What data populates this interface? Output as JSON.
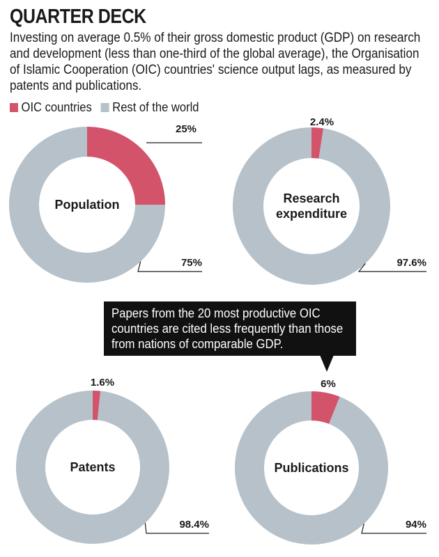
{
  "header": {
    "title": "QUARTER DECK",
    "subtitle": "Investing on average 0.5% of their gross domestic product (GDP) on research and development (less than one-third of the global average), the Organisation of Islamic Cooperation (OIC) countries' science output lags, as measured by patents and publications."
  },
  "legend": {
    "oic_label": "OIC countries",
    "rest_label": "Rest of the world"
  },
  "colors": {
    "oic": "#d2536a",
    "rest": "#b6c1c9"
  },
  "callout": {
    "text": "Papers from the 20 most productive OIC countries are cited less frequently than those from nations of comparable GDP."
  },
  "chart_data": [
    {
      "type": "pie",
      "variant": "donut",
      "categories": [
        "OIC countries",
        "Rest of the world"
      ],
      "values": [
        25,
        75
      ],
      "labels": [
        "25%",
        "75%"
      ],
      "center_label": [
        "Population"
      ]
    },
    {
      "type": "pie",
      "variant": "donut",
      "categories": [
        "OIC countries",
        "Rest of the world"
      ],
      "values": [
        2.4,
        97.6
      ],
      "labels": [
        "2.4%",
        "97.6%"
      ],
      "center_label": [
        "Research",
        "expenditure"
      ]
    },
    {
      "type": "pie",
      "variant": "donut",
      "categories": [
        "OIC countries",
        "Rest of the world"
      ],
      "values": [
        1.6,
        98.4
      ],
      "labels": [
        "1.6%",
        "98.4%"
      ],
      "center_label": [
        "Patents"
      ]
    },
    {
      "type": "pie",
      "variant": "donut",
      "categories": [
        "OIC countries",
        "Rest of the world"
      ],
      "values": [
        6,
        94
      ],
      "labels": [
        "6%",
        "94%"
      ],
      "center_label": [
        "Publications"
      ]
    }
  ]
}
